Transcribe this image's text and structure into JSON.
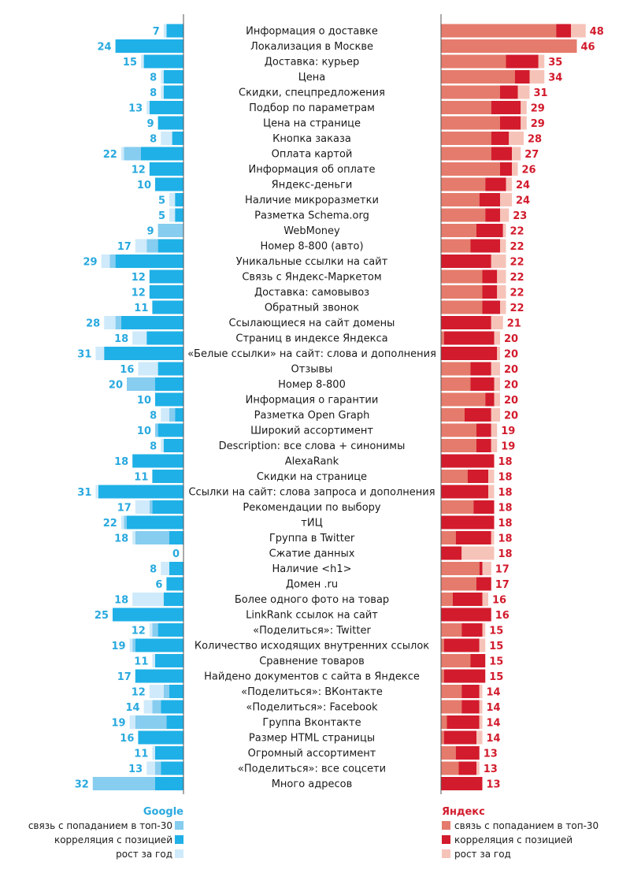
{
  "chart_data": {
    "type": "bar",
    "orientation": "horizontal-diverging",
    "categories": [
      "Информация о доставке",
      "Локализация в Москве",
      "Доставка: курьер",
      "Цена",
      "Скидки, спецпредложения",
      "Подбор по параметрам",
      "Цена на странице",
      "Кнопка заказа",
      "Оплата картой",
      "Информация об оплате",
      "Яндекс-деньги",
      "Наличие микроразметки",
      "Разметка Schema.org",
      "WebMoney",
      "Номер 8-800 (авто)",
      "Уникальные ссылки на сайт",
      "Связь с Яндекс-Маркетом",
      "Доставка: самовывоз",
      "Обратный звонок",
      "Ссылающиеся на сайт домены",
      "Страниц в индексе Яндекса",
      "«Белые ссылки» на сайт: слова и дополнения",
      "Отзывы",
      "Номер 8-800",
      "Информация о гарантии",
      "Разметка Open Graph",
      "Широкий ассортимент",
      "Description: все слова + синонимы",
      "AlexaRank",
      "Скидки на странице",
      "Ссылки на сайт: слова запроса и дополнения",
      "Рекомендации по выбору",
      "тИЦ",
      "Группа в Twitter",
      "Сжатие данных",
      "Наличие <h1>",
      "Домен .ru",
      "Более одного фото на товар",
      "LinkRank ссылок на сайт",
      "«Поделиться»: Twitter",
      "Количество исходящих внутренних ссылок",
      "Сравнение товаров",
      "Найдено документов с сайта в Яндексе",
      "«Поделиться»: ВКонтакте",
      "«Поделиться»:  Facebook",
      "Группа Вконтакте",
      "Размер HTML страницы",
      "Огромный ассортимент",
      "«Поделиться»: все соцсети",
      "Много адресов"
    ],
    "series": [
      {
        "name": "Google",
        "totals": [
          7,
          24,
          15,
          8,
          8,
          13,
          9,
          8,
          22,
          12,
          10,
          5,
          5,
          9,
          17,
          29,
          12,
          12,
          11,
          28,
          18,
          31,
          16,
          20,
          10,
          8,
          10,
          8,
          18,
          11,
          31,
          17,
          22,
          18,
          0,
          8,
          6,
          18,
          25,
          12,
          19,
          11,
          17,
          12,
          14,
          19,
          16,
          11,
          13,
          32
        ],
        "link_top30": [
          0,
          0,
          0,
          0,
          0,
          0,
          0,
          0,
          6,
          0,
          0,
          0,
          0,
          9,
          4,
          2,
          0,
          0,
          0,
          2,
          0,
          0,
          0,
          10,
          0,
          2,
          1,
          0,
          0,
          0,
          0,
          1,
          1,
          12,
          0,
          0,
          0,
          0,
          0,
          2,
          1,
          0,
          0,
          2,
          3,
          11,
          0,
          0,
          2,
          22
        ],
        "correlation": [
          6,
          24,
          14,
          7,
          7,
          12,
          9,
          4,
          15,
          12,
          10,
          3,
          3,
          0,
          9,
          24,
          12,
          12,
          11,
          22,
          13,
          28,
          9,
          10,
          10,
          3,
          9,
          7,
          18,
          11,
          30,
          11,
          20,
          5,
          0,
          5,
          6,
          7,
          25,
          9,
          17,
          10,
          17,
          5,
          8,
          6,
          16,
          10,
          8,
          10
        ],
        "growth": [
          1,
          0,
          1,
          1,
          1,
          1,
          0,
          4,
          1,
          0,
          0,
          2,
          2,
          0,
          4,
          3,
          0,
          0,
          0,
          4,
          5,
          3,
          7,
          0,
          0,
          3,
          0,
          1,
          0,
          0,
          1,
          5,
          1,
          1,
          0,
          3,
          0,
          11,
          0,
          1,
          1,
          1,
          0,
          5,
          3,
          2,
          0,
          1,
          3,
          0
        ]
      },
      {
        "name": "Яндекс",
        "totals": [
          48,
          46,
          35,
          34,
          31,
          29,
          29,
          28,
          27,
          26,
          24,
          24,
          23,
          22,
          22,
          22,
          22,
          22,
          22,
          21,
          20,
          20,
          20,
          20,
          20,
          20,
          19,
          19,
          18,
          18,
          18,
          18,
          18,
          18,
          18,
          17,
          17,
          16,
          16,
          15,
          15,
          15,
          15,
          14,
          14,
          14,
          14,
          13,
          13,
          13
        ],
        "link_top30": [
          39,
          46,
          22,
          25,
          20,
          17,
          20,
          17,
          17,
          20,
          15,
          13,
          15,
          12,
          10,
          0,
          14,
          14,
          14,
          0,
          1,
          0,
          10,
          10,
          15,
          8,
          12,
          12,
          0,
          9,
          0,
          11,
          0,
          5,
          0,
          13,
          12,
          4,
          0,
          7,
          1,
          10,
          1,
          7,
          7,
          2,
          1,
          5,
          6,
          0
        ],
        "correlation": [
          5,
          0,
          11,
          5,
          6,
          10,
          7,
          6,
          7,
          4,
          7,
          7,
          5,
          9,
          10,
          17,
          5,
          5,
          6,
          17,
          17,
          19,
          7,
          8,
          3,
          9,
          5,
          5,
          18,
          7,
          16,
          7,
          18,
          12,
          7,
          1,
          5,
          10,
          17,
          7,
          12,
          5,
          14,
          6,
          6,
          11,
          11,
          8,
          6,
          14
        ],
        "growth": [
          5,
          0,
          2,
          5,
          4,
          2,
          2,
          5,
          3,
          2,
          2,
          4,
          3,
          1,
          2,
          5,
          3,
          3,
          2,
          4,
          2,
          1,
          3,
          2,
          2,
          3,
          2,
          2,
          0,
          2,
          2,
          0,
          0,
          1,
          11,
          3,
          0,
          2,
          0,
          1,
          2,
          0,
          0,
          1,
          1,
          1,
          2,
          0,
          1,
          0
        ]
      }
    ],
    "legend": {
      "google_title": "Google",
      "yandex_title": "Яндекс",
      "items": [
        "связь с попаданием в топ-30",
        "корреляция с позицией",
        "рост за год"
      ]
    },
    "colors": {
      "google_link": "#86cdf0",
      "google_corr": "#1fb0e7",
      "google_growth": "#cfeafa",
      "google_text": "#29a9df",
      "yandex_link": "#e57b6c",
      "yandex_corr": "#d21b2c",
      "yandex_growth": "#f6c3b9",
      "yandex_text": "#d21b2c",
      "axis": "#555555"
    },
    "xlim": [
      0,
      50
    ]
  }
}
